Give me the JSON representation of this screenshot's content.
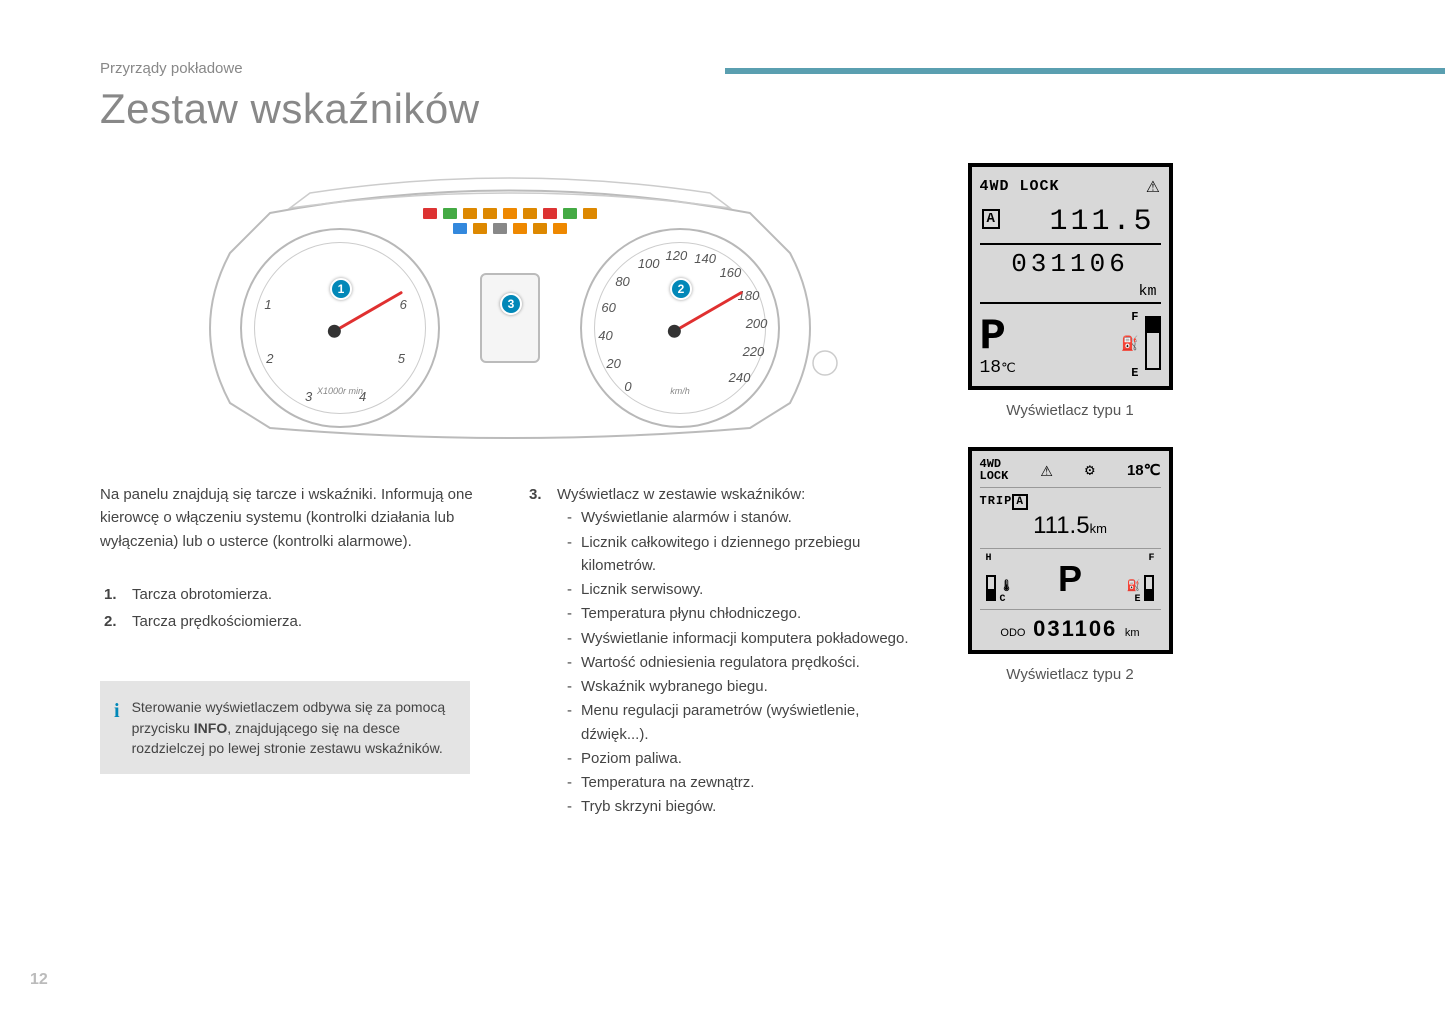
{
  "page": {
    "breadcrumb": "Przyrządy pokładowe",
    "title": "Zestaw wskaźników",
    "number": "12"
  },
  "colors": {
    "accent": "#5a9fb0",
    "callout": "#0288b8",
    "needle": "#e03030",
    "text": "#4a4a4a",
    "muted": "#888888",
    "infobox_bg": "#e4e4e4"
  },
  "cluster": {
    "callouts": [
      "1",
      "2",
      "3"
    ],
    "tacho": {
      "ticks": [
        "1",
        "2",
        "3",
        "4",
        "5",
        "6"
      ],
      "unit": "X1000r min"
    },
    "speedo": {
      "ticks": [
        "0",
        "20",
        "40",
        "60",
        "80",
        "100",
        "120",
        "140",
        "160",
        "180",
        "200",
        "220",
        "240"
      ],
      "unit": "km/h"
    },
    "indicators_top_colors": [
      "#d33",
      "#4a4",
      "#d80",
      "#d80",
      "#e80",
      "#d80",
      "#d33",
      "#4a4",
      "#d80"
    ],
    "indicators_bot_colors": [
      "#38d",
      "#d80",
      "#888",
      "#e80",
      "#d80",
      "#e80"
    ]
  },
  "text": {
    "intro": "Na panelu znajdują się tarcze i wskaźniki. Informują one kierowcę o włączeniu systemu (kontrolki działania lub wyłączenia) lub o usterce (kontrolki alarmowe).",
    "item1": "Tarcza obrotomierza.",
    "item2": "Tarcza prędkościomierza.",
    "item3_head": "Wyświetlacz w zestawie wskaźników:",
    "item3_sub": [
      "Wyświetlanie alarmów i stanów.",
      "Licznik całkowitego i dziennego przebiegu kilometrów.",
      "Licznik serwisowy.",
      "Temperatura płynu chłodniczego.",
      "Wyświetlanie informacji komputera pokładowego.",
      "Wartość odniesienia regulatora prędkości.",
      "Wskaźnik wybranego biegu.",
      "Menu regulacji parametrów (wyświetlenie, dźwięk...).",
      "Poziom paliwa.",
      "Temperatura na zewnątrz.",
      "Tryb skrzyni biegów."
    ],
    "info_pre": "Sterowanie wyświetlaczem odbywa się za pomocą przycisku ",
    "info_bold": "INFO",
    "info_post": ", znajdującego się na desce rozdzielczej po lewej stronie zestawu wskaźników."
  },
  "display1": {
    "caption": "Wyświetlacz typu 1",
    "mode": "4WD LOCK",
    "trip_letter": "A",
    "trip": "111.5",
    "odo": "031106",
    "km": "km",
    "gear": "P",
    "temp": "18",
    "temp_unit": "℃",
    "fuel_F": "F",
    "fuel_E": "E"
  },
  "display2": {
    "caption": "Wyświetlacz typu 2",
    "mode1": "4WD",
    "mode2": "LOCK",
    "temp": "18℃",
    "trip_label": "TRIP",
    "trip_letter": "A",
    "trip": "111.5",
    "trip_unit": "km",
    "gear": "P",
    "coolant_H": "H",
    "coolant_C": "C",
    "fuel_F": "F",
    "fuel_E": "E",
    "odo_label": "ODO",
    "odo": "031106",
    "odo_unit": "km"
  }
}
